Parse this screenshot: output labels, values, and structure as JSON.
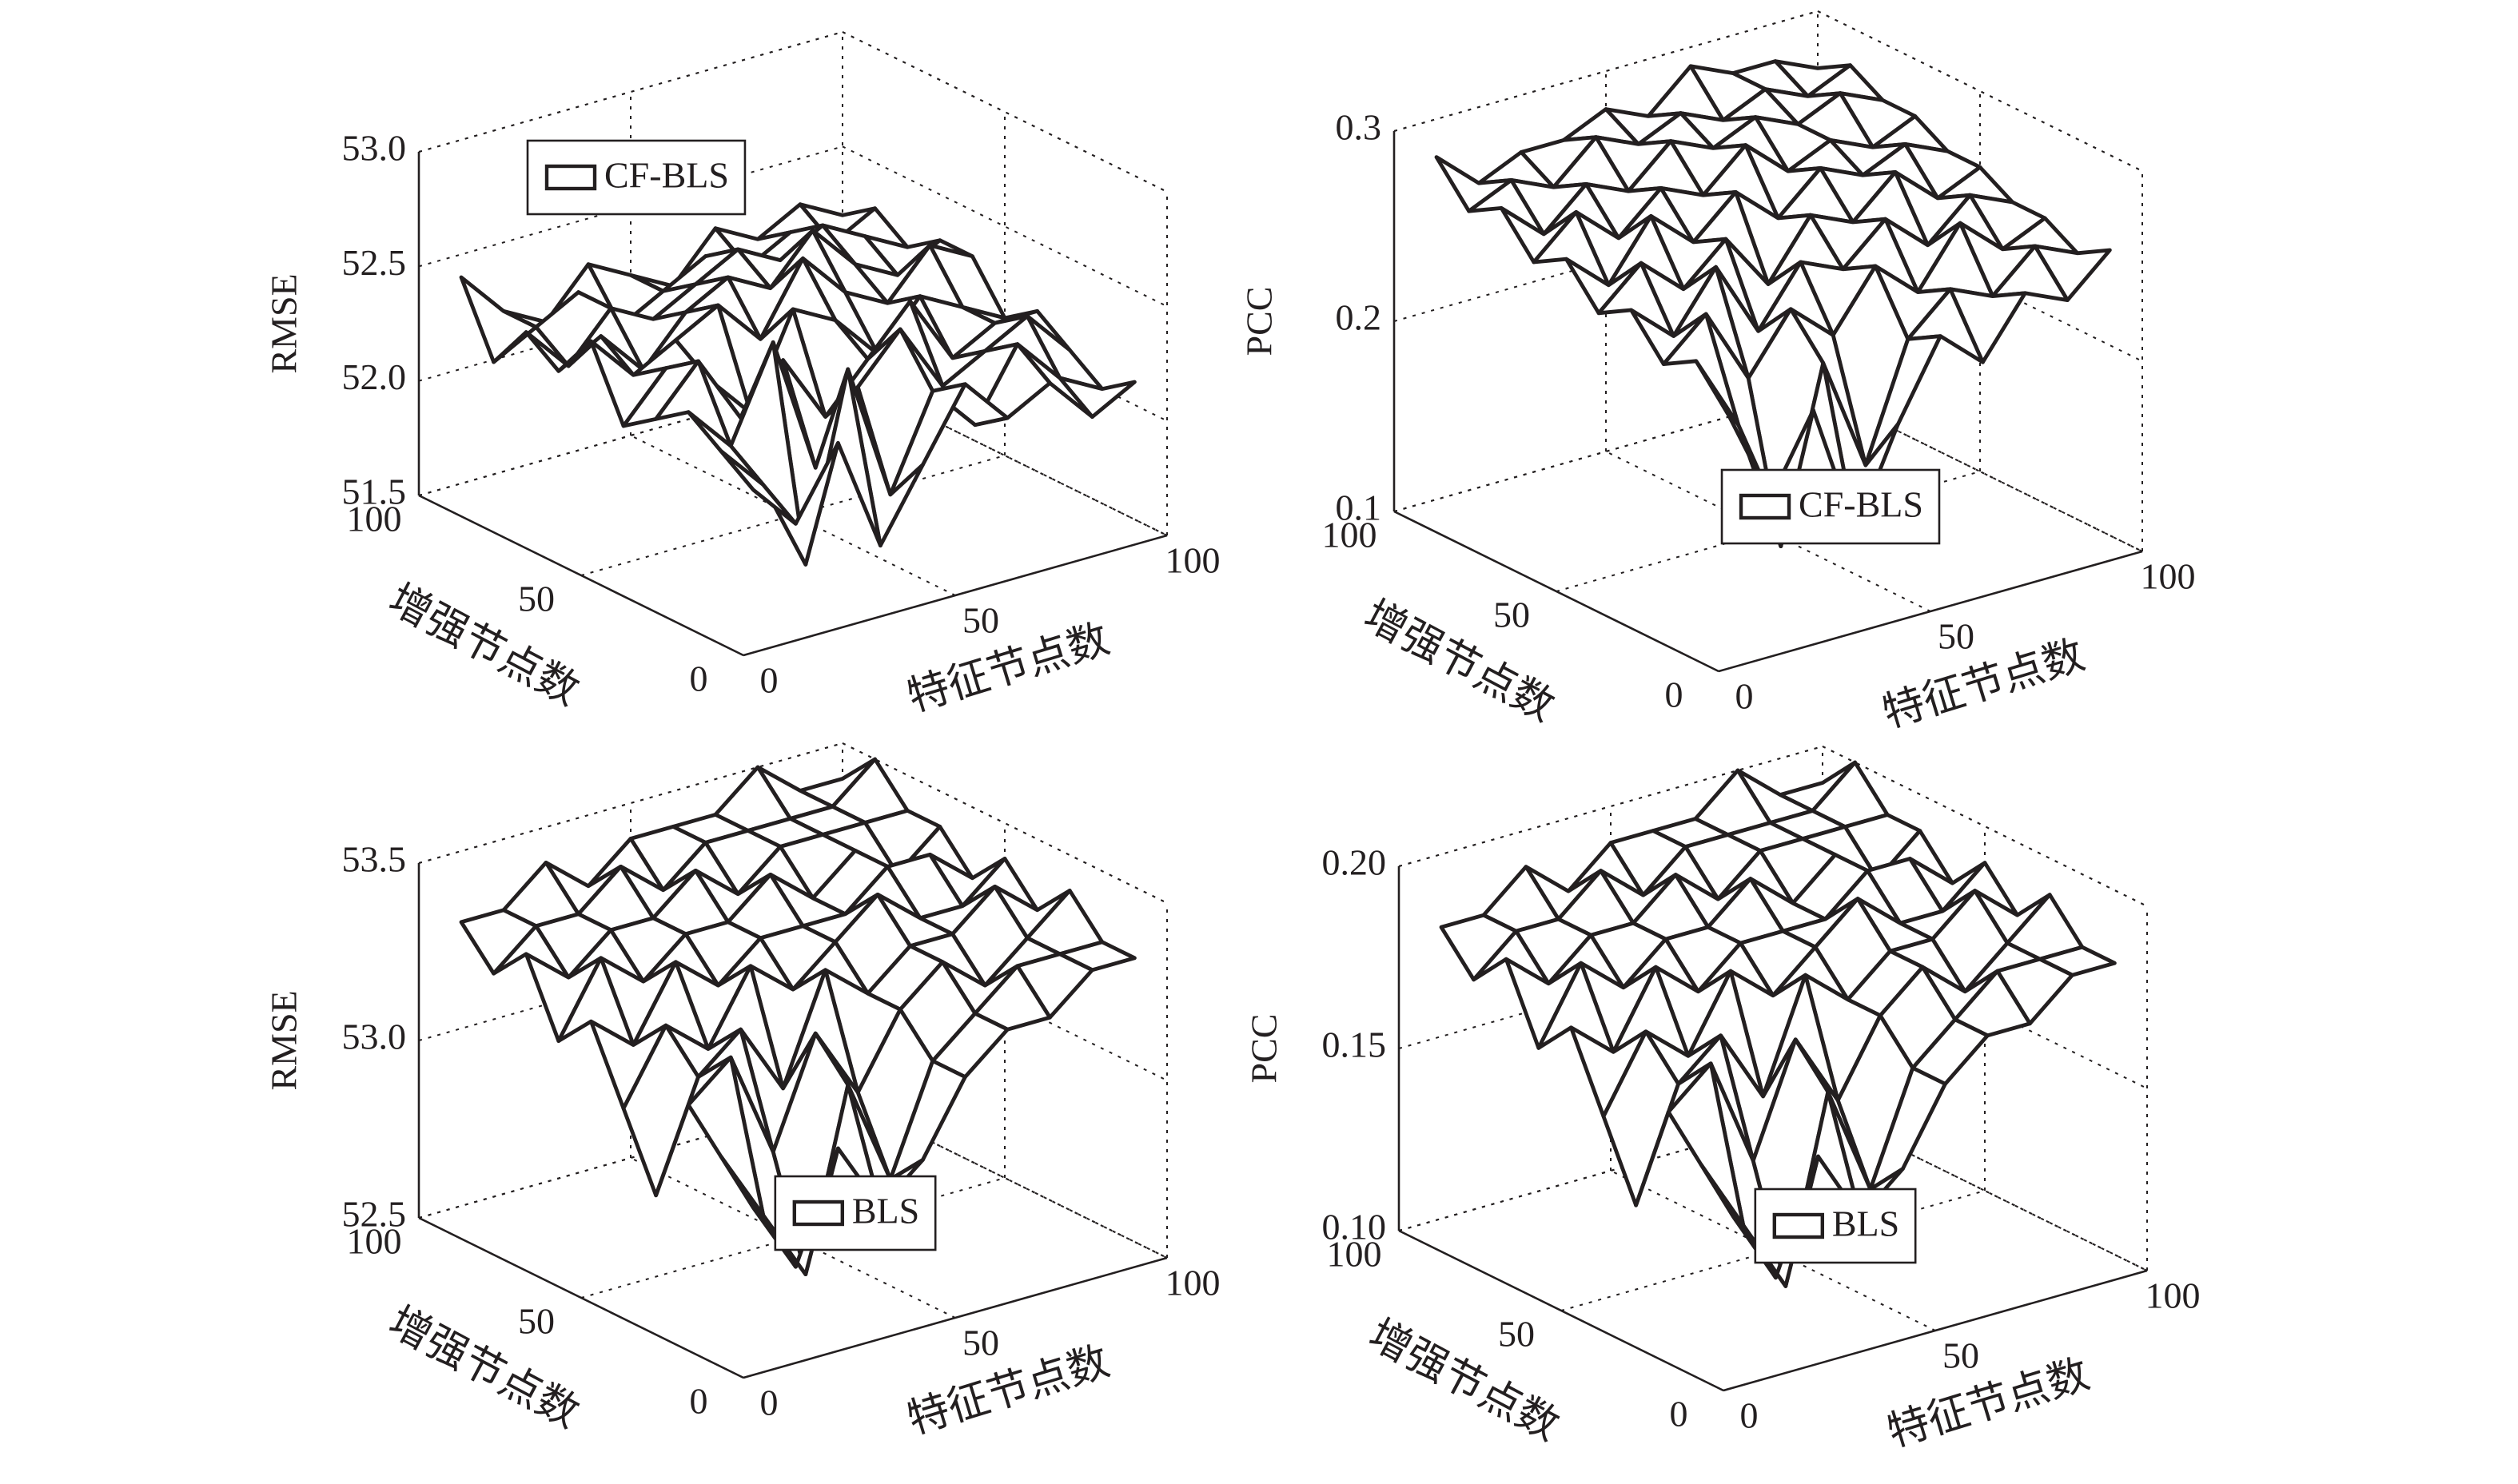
{
  "chart_data": [
    {
      "type": "surface",
      "xlabel": "特征节点数",
      "ylabel": "增强节点数",
      "zlabel": "RMSE",
      "legend": "upper left",
      "x": [
        10,
        20,
        30,
        40,
        50,
        60,
        70,
        80,
        90,
        100
      ],
      "y": [
        10,
        20,
        30,
        40,
        50,
        60,
        70,
        80,
        90,
        100
      ],
      "xlim": [
        0,
        100
      ],
      "ylim": [
        0,
        100
      ],
      "zlim": [
        51.5,
        53
      ],
      "xticks": [
        0,
        50,
        100
      ],
      "yticks": [
        0,
        50,
        100
      ],
      "zticks": [
        51.5,
        {
          "value": 52,
          "label": "52.0"
        },
        52.5,
        {
          "value": 53,
          "label": "53.0"
        }
      ],
      "series": [
        {
          "name": "CF-BLS",
          "color": "#231f20",
          "z": [
            [
              52.1,
              51.9,
              52.2,
              51.7,
              52.0,
              52.3,
              52.1,
              52.2,
              52.0,
              52.1
            ],
            [
              52.2,
              52.0,
              51.6,
              52.4,
              51.8,
              52.2,
              52.0,
              52.3,
              52.1,
              52.0
            ],
            [
              52.3,
              52.1,
              52.5,
              51.9,
              52.2,
              52.4,
              52.1,
              52.2,
              52.3,
              52.1
            ],
            [
              52.2,
              52.4,
              52.1,
              52.3,
              52.0,
              52.2,
              52.4,
              52.1,
              52.2,
              52.2
            ],
            [
              52.1,
              52.3,
              52.2,
              52.0,
              52.4,
              52.3,
              52.1,
              52.3,
              52.2,
              52.1
            ],
            [
              52.4,
              52.2,
              52.3,
              52.4,
              52.2,
              52.5,
              52.3,
              52.2,
              52.4,
              52.3
            ],
            [
              52.2,
              52.3,
              52.1,
              52.3,
              52.4,
              52.3,
              52.5,
              52.3,
              52.2,
              52.3
            ],
            [
              52.3,
              52.1,
              52.3,
              52.2,
              52.3,
              52.4,
              52.3,
              52.4,
              52.3,
              52.2
            ],
            [
              52.1,
              52.2,
              52.3,
              52.1,
              52.2,
              52.3,
              52.2,
              52.3,
              52.2,
              52.3
            ],
            [
              52.4,
              52.2,
              52.1,
              52.3,
              52.2,
              52.1,
              52.3,
              52.2,
              52.3,
              52.2
            ]
          ]
        }
      ]
    },
    {
      "type": "surface",
      "xlabel": "特征节点数",
      "ylabel": "增强节点数",
      "zlabel": "PCC",
      "legend": "lower center",
      "x": [
        10,
        20,
        30,
        40,
        50,
        60,
        70,
        80,
        90,
        100
      ],
      "y": [
        10,
        20,
        30,
        40,
        50,
        60,
        70,
        80,
        90,
        100
      ],
      "xlim": [
        0,
        100
      ],
      "ylim": [
        0,
        100
      ],
      "zlim": [
        0.1,
        0.3
      ],
      "xticks": [
        0,
        50,
        100
      ],
      "yticks": [
        0,
        50,
        100
      ],
      "zticks": [
        0.1,
        0.2,
        0.3
      ],
      "series": [
        {
          "name": "CF-BLS",
          "color": "#231f20",
          "z": [
            [
              0.22,
              0.17,
              0.21,
              0.14,
              0.19,
              0.23,
              0.21,
              0.24,
              0.23,
              0.25
            ],
            [
              0.24,
              0.2,
              0.13,
              0.22,
              0.16,
              0.22,
              0.24,
              0.23,
              0.25,
              0.24
            ],
            [
              0.23,
              0.25,
              0.21,
              0.24,
              0.22,
              0.25,
              0.23,
              0.26,
              0.24,
              0.25
            ],
            [
              0.25,
              0.23,
              0.26,
              0.22,
              0.25,
              0.24,
              0.26,
              0.24,
              0.26,
              0.25
            ],
            [
              0.24,
              0.26,
              0.24,
              0.26,
              0.23,
              0.26,
              0.25,
              0.27,
              0.25,
              0.26
            ],
            [
              0.26,
              0.24,
              0.27,
              0.25,
              0.27,
              0.25,
              0.27,
              0.26,
              0.27,
              0.26
            ],
            [
              0.25,
              0.27,
              0.25,
              0.27,
              0.26,
              0.28,
              0.26,
              0.27,
              0.26,
              0.27
            ],
            [
              0.27,
              0.25,
              0.27,
              0.26,
              0.28,
              0.27,
              0.28,
              0.27,
              0.28,
              0.27
            ],
            [
              0.26,
              0.27,
              0.26,
              0.28,
              0.27,
              0.28,
              0.27,
              0.28,
              0.27,
              0.28
            ],
            [
              0.28,
              0.26,
              0.27,
              0.27,
              0.28,
              0.27,
              0.29,
              0.28,
              0.28,
              0.27
            ]
          ]
        }
      ]
    },
    {
      "type": "surface",
      "xlabel": "特征节点数",
      "ylabel": "增强节点数",
      "zlabel": "RMSE",
      "legend": "lower center",
      "x": [
        10,
        20,
        30,
        40,
        50,
        60,
        70,
        80,
        90,
        100
      ],
      "y": [
        10,
        20,
        30,
        40,
        50,
        60,
        70,
        80,
        90,
        100
      ],
      "xlim": [
        0,
        100
      ],
      "ylim": [
        0,
        100
      ],
      "zlim": [
        52.5,
        53.5
      ],
      "xticks": [
        0,
        50,
        100
      ],
      "yticks": [
        0,
        50,
        100
      ],
      "zticks": [
        52.5,
        {
          "value": 53,
          "label": "53.0"
        },
        53.5
      ],
      "series": [
        {
          "name": "BLS",
          "color": "#231f20",
          "z": [
            [
              52.9,
              52.7,
              53.0,
              52.8,
              52.9,
              53.1,
              53.2,
              53.2,
              53.3,
              53.3
            ],
            [
              53.0,
              52.8,
              52.6,
              53.1,
              52.8,
              53.1,
              53.2,
              53.3,
              53.3,
              53.3
            ],
            [
              53.1,
              53.2,
              52.9,
              53.2,
              53.0,
              53.2,
              53.3,
              53.2,
              53.3,
              53.4
            ],
            [
              52.8,
              53.1,
              53.2,
              53.0,
              53.3,
              53.2,
              53.3,
              53.3,
              53.4,
              53.3
            ],
            [
              53.0,
              53.2,
              53.1,
              53.3,
              53.2,
              53.3,
              53.4,
              53.3,
              53.3,
              53.4
            ],
            [
              53.2,
              53.1,
              53.3,
              53.2,
              53.3,
              53.3,
              53.3,
              53.4,
              53.4,
              53.3
            ],
            [
              53.1,
              53.3,
              53.2,
              53.3,
              53.3,
              53.4,
              53.3,
              53.4,
              53.3,
              53.4
            ],
            [
              53.3,
              53.2,
              53.3,
              53.3,
              53.4,
              53.3,
              53.4,
              53.4,
              53.4,
              53.4
            ],
            [
              53.2,
              53.3,
              53.3,
              53.4,
              53.3,
              53.4,
              53.4,
              53.4,
              53.4,
              53.5
            ],
            [
              53.3,
              53.3,
              53.4,
              53.3,
              53.4,
              53.4,
              53.4,
              53.5,
              53.4,
              53.4
            ]
          ]
        }
      ]
    },
    {
      "type": "surface",
      "xlabel": "特征节点数",
      "ylabel": "增强节点数",
      "zlabel": "PCC",
      "legend": "lower center",
      "x": [
        10,
        20,
        30,
        40,
        50,
        60,
        70,
        80,
        90,
        100
      ],
      "y": [
        10,
        20,
        30,
        40,
        50,
        60,
        70,
        80,
        90,
        100
      ],
      "xlim": [
        0,
        100
      ],
      "ylim": [
        0,
        100
      ],
      "zlim": [
        0.1,
        0.2
      ],
      "xticks": [
        0,
        50,
        100
      ],
      "yticks": [
        0,
        50,
        100
      ],
      "zticks": [
        {
          "value": 0.1,
          "label": "0.10"
        },
        0.15,
        {
          "value": 0.2,
          "label": "0.20"
        }
      ],
      "series": [
        {
          "name": "BLS",
          "color": "#231f20",
          "z": [
            [
              0.14,
              0.12,
              0.15,
              0.13,
              0.14,
              0.16,
              0.17,
              0.17,
              0.18,
              0.18
            ],
            [
              0.15,
              0.13,
              0.11,
              0.16,
              0.13,
              0.16,
              0.17,
              0.18,
              0.18,
              0.18
            ],
            [
              0.16,
              0.17,
              0.14,
              0.17,
              0.15,
              0.17,
              0.18,
              0.17,
              0.18,
              0.19
            ],
            [
              0.13,
              0.16,
              0.17,
              0.15,
              0.18,
              0.17,
              0.18,
              0.18,
              0.19,
              0.18
            ],
            [
              0.15,
              0.17,
              0.16,
              0.18,
              0.17,
              0.18,
              0.19,
              0.18,
              0.18,
              0.19
            ],
            [
              0.17,
              0.16,
              0.18,
              0.17,
              0.18,
              0.18,
              0.18,
              0.19,
              0.19,
              0.18
            ],
            [
              0.16,
              0.18,
              0.17,
              0.18,
              0.18,
              0.19,
              0.18,
              0.19,
              0.18,
              0.19
            ],
            [
              0.18,
              0.17,
              0.18,
              0.18,
              0.19,
              0.18,
              0.19,
              0.19,
              0.19,
              0.19
            ],
            [
              0.17,
              0.18,
              0.18,
              0.19,
              0.18,
              0.19,
              0.19,
              0.19,
              0.19,
              0.2
            ],
            [
              0.18,
              0.18,
              0.19,
              0.18,
              0.19,
              0.19,
              0.19,
              0.2,
              0.19,
              0.19
            ]
          ]
        }
      ]
    }
  ]
}
